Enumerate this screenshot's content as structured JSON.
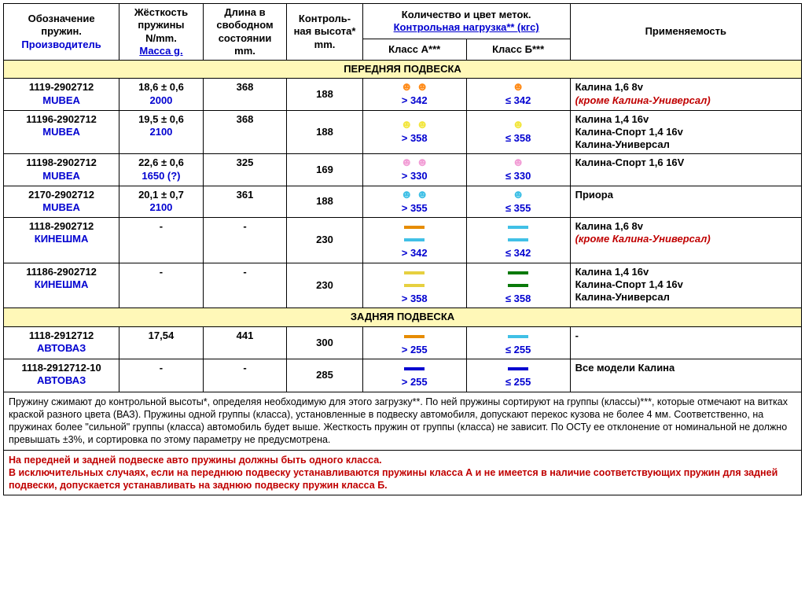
{
  "headers": {
    "h1a": "Обозначение пружин.",
    "h1b": "Производитель",
    "h2a": "Жёсткость пружины N/mm.",
    "h2b": "Масса g.",
    "h3": "Длина в свободном состоянии mm.",
    "h4": "Контроль-ная высота* mm.",
    "h5top": "Количество и цвет меток.",
    "h5sub": "Контрольная нагрузка** (кгс)",
    "h5a": "Класс А***",
    "h5b": "Класс Б***",
    "h6": "Применяемость"
  },
  "sections": {
    "front": "ПЕРЕДНЯЯ ПОДВЕСКА",
    "rear": "ЗАДНЯЯ ПОДВЕСКА"
  },
  "rows": [
    {
      "code": "1119-2902712",
      "maker": "MUBEA",
      "stiff": "18,6 ± 0,6",
      "mass": "2000",
      "len": "368",
      "ctrl": "188",
      "markA": {
        "type": "dots",
        "n": 2,
        "color": "#ff8c1a"
      },
      "valA": "> 342",
      "markB": {
        "type": "dots",
        "n": 1,
        "color": "#ff8c1a"
      },
      "valB": "≤ 342",
      "app": "Калина 1,6 8v",
      "appNote": "(кроме Калина-Универсал)"
    },
    {
      "code": "11196-2902712",
      "maker": "MUBEA",
      "stiff": "19,5 ± 0,6",
      "mass": "2100",
      "len": "368",
      "ctrl": "188",
      "markA": {
        "type": "dots",
        "n": 2,
        "color": "#f2e640"
      },
      "valA": "> 358",
      "markB": {
        "type": "dots",
        "n": 1,
        "color": "#f2e640"
      },
      "valB": "≤ 358",
      "app": "Калина 1,4 16v\nКалина-Спорт 1,4 16v\nКалина-Универсал"
    },
    {
      "code": "11198-2902712",
      "maker": "MUBEA",
      "stiff": "22,6 ± 0,6",
      "mass": "1650 (?)",
      "len": "325",
      "ctrl": "169",
      "markA": {
        "type": "dots",
        "n": 2,
        "color": "#f29ed6"
      },
      "valA": "> 330",
      "markB": {
        "type": "dots",
        "n": 1,
        "color": "#f29ed6"
      },
      "valB": "≤ 330",
      "app": "Калина-Спорт 1,6 16V"
    },
    {
      "code": "2170-2902712",
      "maker": "MUBEA",
      "stiff": "20,1 ± 0,7",
      "mass": "2100",
      "len": "361",
      "ctrl": "188",
      "markA": {
        "type": "dots",
        "n": 2,
        "color": "#40c0e6"
      },
      "valA": "> 355",
      "markB": {
        "type": "dots",
        "n": 1,
        "color": "#40c0e6"
      },
      "valB": "≤ 355",
      "app": "Приора"
    },
    {
      "code": "1118-2902712",
      "maker": "КИНЕШМА",
      "stiff": "-",
      "mass": "",
      "len": "-",
      "ctrl": "230",
      "markA": {
        "type": "bars",
        "n": 2,
        "c1": "#e68c00",
        "c2": "#40c0e6"
      },
      "valA": "> 342",
      "markB": {
        "type": "bars",
        "n": 2,
        "c1": "#40c0e6",
        "c2": "#40c0e6"
      },
      "valB": "≤ 342",
      "app": "Калина 1,6 8v",
      "appNote": "(кроме Калина-Универсал)"
    },
    {
      "code": "11186-2902712",
      "maker": "КИНЕШМА",
      "stiff": "-",
      "mass": "",
      "len": "-",
      "ctrl": "230",
      "markA": {
        "type": "bars",
        "n": 2,
        "c1": "#e6d040",
        "c2": "#e6d040"
      },
      "valA": "> 358",
      "markB": {
        "type": "bars",
        "n": 2,
        "c1": "#0a7a0a",
        "c2": "#0a7a0a"
      },
      "valB": "≤ 358",
      "app": "Калина 1,4 16v\nКалина-Спорт 1,4 16v\nКалина-Универсал"
    },
    {
      "code": "1118-2912712",
      "maker": "АВТОВАЗ",
      "stiff": "17,54",
      "mass": "",
      "len": "441",
      "ctrl": "300",
      "markA": {
        "type": "bars",
        "n": 1,
        "c1": "#e68c00"
      },
      "valA": "> 255",
      "markB": {
        "type": "bars",
        "n": 1,
        "c1": "#40c0e6"
      },
      "valB": "≤ 255",
      "app": "-"
    },
    {
      "code": "1118-2912712-10",
      "maker": "АВТОВАЗ",
      "stiff": "-",
      "mass": "",
      "len": "-",
      "ctrl": "285",
      "markA": {
        "type": "bars",
        "n": 1,
        "c1": "#0000d0"
      },
      "valA": "> 255",
      "markB": {
        "type": "bars",
        "n": 1,
        "c1": "#0000d0"
      },
      "valB": "≤ 255",
      "app": "Все модели Калина"
    }
  ],
  "notes": "Пружину сжимают до контрольной высоты*, определяя необходимую для этого загрузку**. По ней пружины сортируют на группы (классы)***, которые отмечают на витках краской разного цвета (ВАЗ). Пружины одной группы (класса), установленные в подвеску автомобиля, допускают перекос кузова не более 4 мм. Соответственно, на пружинах более \"сильной\" группы (класса) автомобиль будет выше. Жесткость пружин от группы (класса) не зависит. По ОСТу ее отклонение от номинальной не должно превышать ±3%, и сортировка по этому параметру не предусмотрена.",
  "redNotes": "На передней и задней подвеске авто пружины должны быть одного класса.\nВ исключительных случаях, если на переднюю подвеску устанавливаются пружины класса А и не имеется в наличие соответствующих пружин для задней подвески, допускается устанавливать на заднюю подвеску пружин класса Б."
}
